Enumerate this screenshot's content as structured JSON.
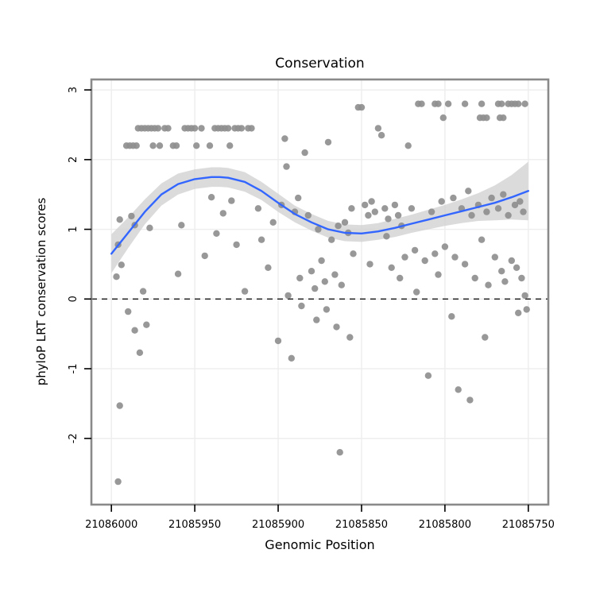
{
  "chart_data": {
    "type": "scatter",
    "title": "Conservation",
    "xlabel": "Genomic Position",
    "ylabel": "phyloP LRT conservation scores",
    "x_ticks": [
      21086000,
      21085950,
      21085900,
      21085850,
      21085800,
      21085750
    ],
    "y_ticks": [
      -2,
      -1,
      0,
      1,
      2,
      3
    ],
    "xlim": [
      21086012,
      21085738
    ],
    "ylim": [
      -2.95,
      3.15
    ],
    "x_axis_reversed": true,
    "reference_line_y": 0,
    "grid": true,
    "legend": "none",
    "colors": {
      "point": "#8F8F8F",
      "smooth_line": "#3366FF",
      "ribbon": "#CFCFCF",
      "grid": "#EDEDED",
      "panel_border": "#8A8A8A",
      "background": "#FFFFFF",
      "reference_line": "#000000"
    },
    "points": [
      [
        21085984,
        2.45
      ],
      [
        21085982,
        2.45
      ],
      [
        21085980,
        2.45
      ],
      [
        21085978,
        2.45
      ],
      [
        21085976,
        2.45
      ],
      [
        21085974,
        2.45
      ],
      [
        21085972,
        2.45
      ],
      [
        21085968,
        2.45
      ],
      [
        21085966,
        2.45
      ],
      [
        21085956,
        2.45
      ],
      [
        21085954,
        2.45
      ],
      [
        21085952,
        2.45
      ],
      [
        21085950,
        2.45
      ],
      [
        21085946,
        2.45
      ],
      [
        21085938,
        2.45
      ],
      [
        21085936,
        2.45
      ],
      [
        21085934,
        2.45
      ],
      [
        21085932,
        2.45
      ],
      [
        21085930,
        2.45
      ],
      [
        21085926,
        2.45
      ],
      [
        21085924,
        2.45
      ],
      [
        21085922,
        2.45
      ],
      [
        21085918,
        2.45
      ],
      [
        21085916,
        2.45
      ],
      [
        21085991,
        2.2
      ],
      [
        21085989,
        2.2
      ],
      [
        21085987,
        2.2
      ],
      [
        21085985,
        2.2
      ],
      [
        21085975,
        2.2
      ],
      [
        21085971,
        2.2
      ],
      [
        21085963,
        2.2
      ],
      [
        21085961,
        2.2
      ],
      [
        21085949,
        2.2
      ],
      [
        21085941,
        2.2
      ],
      [
        21085929,
        2.2
      ],
      [
        21085816,
        2.8
      ],
      [
        21085814,
        2.8
      ],
      [
        21085806,
        2.8
      ],
      [
        21085804,
        2.8
      ],
      [
        21085798,
        2.8
      ],
      [
        21085788,
        2.8
      ],
      [
        21085778,
        2.8
      ],
      [
        21085768,
        2.8
      ],
      [
        21085766,
        2.8
      ],
      [
        21085762,
        2.8
      ],
      [
        21085760,
        2.8
      ],
      [
        21085758,
        2.8
      ],
      [
        21085756,
        2.8
      ],
      [
        21085752,
        2.8
      ],
      [
        21085801,
        2.6
      ],
      [
        21085779,
        2.6
      ],
      [
        21085777,
        2.6
      ],
      [
        21085775,
        2.6
      ],
      [
        21085767,
        2.6
      ],
      [
        21085765,
        2.6
      ],
      [
        21085852,
        2.75
      ],
      [
        21085850,
        2.75
      ],
      [
        21085840,
        2.45
      ],
      [
        21085838,
        2.35
      ],
      [
        21085822,
        2.2
      ],
      [
        21085896,
        2.3
      ],
      [
        21085884,
        2.1
      ],
      [
        21085870,
        2.25
      ],
      [
        21085895,
        1.9
      ],
      [
        21085997,
        0.32
      ],
      [
        21085996,
        0.78
      ],
      [
        21085995,
        1.14
      ],
      [
        21085994,
        0.49
      ],
      [
        21085995,
        -1.53
      ],
      [
        21085996,
        -2.62
      ],
      [
        21085990,
        -0.18
      ],
      [
        21085988,
        1.19
      ],
      [
        21085986,
        1.06
      ],
      [
        21085986,
        -0.45
      ],
      [
        21085983,
        -0.77
      ],
      [
        21085981,
        0.11
      ],
      [
        21085979,
        -0.37
      ],
      [
        21085977,
        1.02
      ],
      [
        21085960,
        0.36
      ],
      [
        21085958,
        1.06
      ],
      [
        21085944,
        0.62
      ],
      [
        21085940,
        1.46
      ],
      [
        21085937,
        0.94
      ],
      [
        21085933,
        1.23
      ],
      [
        21085928,
        1.41
      ],
      [
        21085925,
        0.78
      ],
      [
        21085920,
        0.11
      ],
      [
        21085912,
        1.3
      ],
      [
        21085910,
        0.85
      ],
      [
        21085906,
        0.45
      ],
      [
        21085903,
        1.1
      ],
      [
        21085900,
        -0.6
      ],
      [
        21085898,
        1.35
      ],
      [
        21085894,
        0.05
      ],
      [
        21085892,
        -0.85
      ],
      [
        21085890,
        1.25
      ],
      [
        21085888,
        1.45
      ],
      [
        21085887,
        0.3
      ],
      [
        21085886,
        -0.1
      ],
      [
        21085882,
        1.2
      ],
      [
        21085880,
        0.4
      ],
      [
        21085878,
        0.15
      ],
      [
        21085877,
        -0.3
      ],
      [
        21085876,
        1.0
      ],
      [
        21085874,
        0.55
      ],
      [
        21085872,
        0.25
      ],
      [
        21085871,
        -0.15
      ],
      [
        21085868,
        0.85
      ],
      [
        21085866,
        0.35
      ],
      [
        21085865,
        -0.4
      ],
      [
        21085864,
        1.05
      ],
      [
        21085863,
        -2.2
      ],
      [
        21085862,
        0.2
      ],
      [
        21085860,
        1.1
      ],
      [
        21085858,
        0.95
      ],
      [
        21085857,
        -0.55
      ],
      [
        21085856,
        1.3
      ],
      [
        21085855,
        0.65
      ],
      [
        21085848,
        1.35
      ],
      [
        21085846,
        1.2
      ],
      [
        21085845,
        0.5
      ],
      [
        21085844,
        1.4
      ],
      [
        21085842,
        1.25
      ],
      [
        21085836,
        1.3
      ],
      [
        21085835,
        0.9
      ],
      [
        21085834,
        1.15
      ],
      [
        21085832,
        0.45
      ],
      [
        21085830,
        1.35
      ],
      [
        21085828,
        1.2
      ],
      [
        21085827,
        0.3
      ],
      [
        21085826,
        1.05
      ],
      [
        21085824,
        0.6
      ],
      [
        21085820,
        1.3
      ],
      [
        21085818,
        0.7
      ],
      [
        21085817,
        0.1
      ],
      [
        21085812,
        0.55
      ],
      [
        21085810,
        -1.1
      ],
      [
        21085808,
        1.25
      ],
      [
        21085806,
        0.65
      ],
      [
        21085804,
        0.35
      ],
      [
        21085802,
        1.4
      ],
      [
        21085800,
        0.75
      ],
      [
        21085796,
        -0.25
      ],
      [
        21085795,
        1.45
      ],
      [
        21085794,
        0.6
      ],
      [
        21085792,
        -1.3
      ],
      [
        21085790,
        1.3
      ],
      [
        21085788,
        0.5
      ],
      [
        21085786,
        1.55
      ],
      [
        21085785,
        -1.45
      ],
      [
        21085784,
        1.2
      ],
      [
        21085782,
        0.3
      ],
      [
        21085780,
        1.35
      ],
      [
        21085778,
        0.85
      ],
      [
        21085776,
        -0.55
      ],
      [
        21085775,
        1.25
      ],
      [
        21085774,
        0.2
      ],
      [
        21085772,
        1.45
      ],
      [
        21085770,
        0.6
      ],
      [
        21085768,
        1.3
      ],
      [
        21085766,
        0.4
      ],
      [
        21085765,
        1.5
      ],
      [
        21085764,
        0.25
      ],
      [
        21085762,
        1.2
      ],
      [
        21085760,
        0.55
      ],
      [
        21085758,
        1.35
      ],
      [
        21085757,
        0.45
      ],
      [
        21085756,
        -0.2
      ],
      [
        21085755,
        1.4
      ],
      [
        21085754,
        0.3
      ],
      [
        21085753,
        1.25
      ],
      [
        21085752,
        0.05
      ],
      [
        21085751,
        -0.15
      ]
    ],
    "smooth": {
      "x": [
        21086000,
        21085990,
        21085980,
        21085970,
        21085960,
        21085950,
        21085940,
        21085935,
        21085930,
        21085920,
        21085910,
        21085900,
        21085890,
        21085880,
        21085870,
        21085860,
        21085850,
        21085840,
        21085830,
        21085820,
        21085810,
        21085800,
        21085790,
        21085780,
        21085770,
        21085760,
        21085750
      ],
      "y": [
        0.65,
        0.95,
        1.25,
        1.5,
        1.65,
        1.72,
        1.75,
        1.75,
        1.74,
        1.68,
        1.55,
        1.38,
        1.22,
        1.1,
        1.0,
        0.95,
        0.94,
        0.97,
        1.02,
        1.08,
        1.14,
        1.2,
        1.26,
        1.32,
        1.38,
        1.46,
        1.55
      ],
      "ci_half_width": [
        0.28,
        0.22,
        0.18,
        0.16,
        0.15,
        0.14,
        0.14,
        0.14,
        0.14,
        0.14,
        0.13,
        0.13,
        0.12,
        0.12,
        0.12,
        0.12,
        0.12,
        0.12,
        0.13,
        0.13,
        0.14,
        0.15,
        0.17,
        0.2,
        0.25,
        0.32,
        0.42
      ]
    }
  }
}
